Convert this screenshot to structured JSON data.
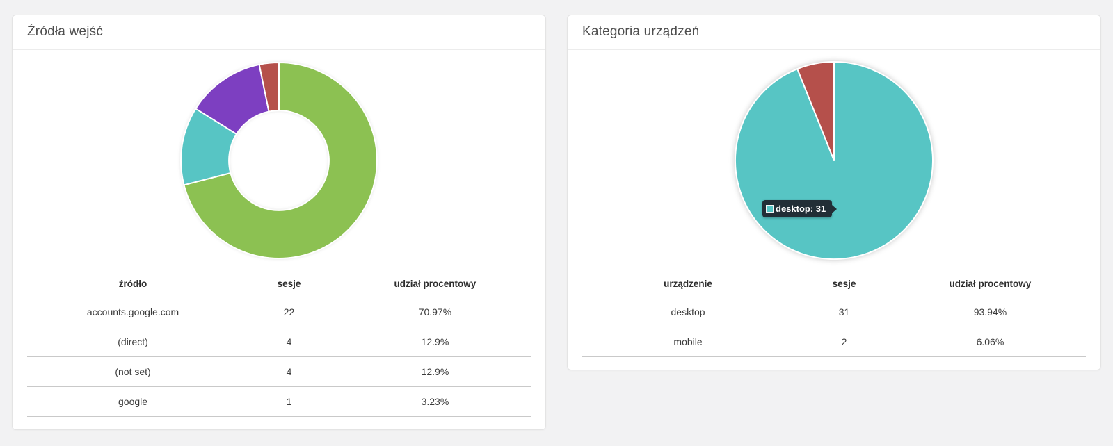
{
  "cards": [
    {
      "title": "Źródła wejść",
      "table": {
        "headers": [
          "źródło",
          "sesje",
          "udział procentowy"
        ],
        "rows": [
          [
            "accounts.google.com",
            "22",
            "70.97%"
          ],
          [
            "(direct)",
            "4",
            "12.9%"
          ],
          [
            "(not set)",
            "4",
            "12.9%"
          ],
          [
            "google",
            "1",
            "3.23%"
          ]
        ]
      }
    },
    {
      "title": "Kategoria urządzeń",
      "table": {
        "headers": [
          "urządzenie",
          "sesje",
          "udział procentowy"
        ],
        "rows": [
          [
            "desktop",
            "31",
            "93.94%"
          ],
          [
            "mobile",
            "2",
            "6.06%"
          ]
        ]
      },
      "tooltip": {
        "text": "desktop: 31",
        "swatch_color": "#57c5c4"
      }
    }
  ],
  "chart_data": [
    {
      "type": "pie",
      "variant": "donut",
      "title": "Źródła wejść",
      "series_name": "sesje",
      "categories": [
        "accounts.google.com",
        "(direct)",
        "(not set)",
        "google"
      ],
      "values": [
        22,
        4,
        4,
        1
      ],
      "percentages": [
        70.97,
        12.9,
        12.9,
        3.23
      ],
      "colors": [
        "#8cc152",
        "#57c5c4",
        "#7d3fc1",
        "#b5504b"
      ],
      "start_angle": 0,
      "direction": "clockwise",
      "inner_radius_ratio": 0.51,
      "legend": false,
      "grid": false
    },
    {
      "type": "pie",
      "variant": "pie",
      "title": "Kategoria urządzeń",
      "series_name": "sesje",
      "categories": [
        "desktop",
        "mobile"
      ],
      "values": [
        31,
        2
      ],
      "percentages": [
        93.94,
        6.06
      ],
      "colors": [
        "#57c5c4",
        "#b5504b"
      ],
      "start_angle": 0,
      "direction": "clockwise",
      "inner_radius_ratio": 0,
      "legend": false,
      "grid": false,
      "hovered": {
        "category": "desktop",
        "value": 31,
        "tooltip": "desktop: 31"
      }
    }
  ],
  "colors": {
    "page_background": "#f2f2f3",
    "card_background": "#ffffff",
    "tooltip_background": "#20262e",
    "table_divider": "#c9c9c9"
  }
}
